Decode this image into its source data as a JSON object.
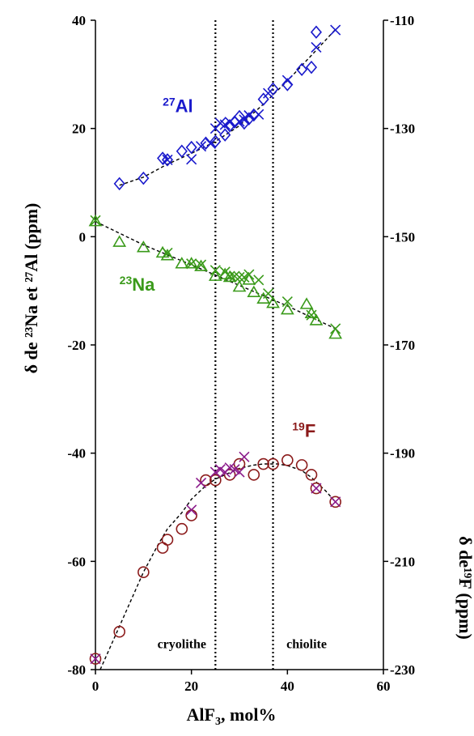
{
  "chart_data": {
    "type": "scatter",
    "xlabel": "AlF",
    "xlabel_sub": "3",
    "xlabel_suffix": ", mol%",
    "ylabel_left": "δ de ²³Na et ²⁷Al (ppm)",
    "ylabel_right": "δ de¹⁹F (ppm)",
    "xlim": [
      0,
      60
    ],
    "ylim_left": [
      -80,
      40
    ],
    "ylim_right": [
      -230,
      -110
    ],
    "xticks": [
      0,
      20,
      40,
      60
    ],
    "yticks_left": [
      40,
      20,
      0,
      -20,
      -40,
      -60,
      -80
    ],
    "yticks_right": [
      -110,
      -130,
      -150,
      -170,
      -190,
      -210,
      -230
    ],
    "grid": false,
    "vlines": [
      25,
      37
    ],
    "region_labels": [
      {
        "text": "cryolithe",
        "x": 18,
        "y": -76
      },
      {
        "text": "chiolite",
        "x": 44,
        "y": -76
      }
    ],
    "series": [
      {
        "name": "27Al",
        "label_sup": "27",
        "label_main": "Al",
        "label_x": 14,
        "label_y": 23,
        "color": "#1a1acc",
        "axis": "left",
        "marker": "diamond",
        "points": [
          [
            5,
            9.8
          ],
          [
            10,
            10.8
          ],
          [
            14,
            14.5
          ],
          [
            15,
            14.2
          ],
          [
            18,
            15.8
          ],
          [
            20,
            16.5
          ],
          [
            23,
            17.3
          ],
          [
            25,
            17.6
          ],
          [
            27,
            18.8
          ],
          [
            28,
            20.5
          ],
          [
            29,
            21.2
          ],
          [
            30,
            22.2
          ],
          [
            31,
            21.0
          ],
          [
            32,
            21.8
          ],
          [
            33,
            22.5
          ],
          [
            35,
            25.4
          ],
          [
            37,
            27.3
          ],
          [
            40,
            28.1
          ],
          [
            43,
            30.9
          ],
          [
            45,
            31.3
          ],
          [
            46,
            37.8
          ]
        ]
      },
      {
        "name": "27Al-cross",
        "color": "#1a1acc",
        "axis": "left",
        "marker": "x",
        "points": [
          [
            15,
            14.2
          ],
          [
            20,
            14.3
          ],
          [
            22,
            16.7
          ],
          [
            24,
            17.2
          ],
          [
            25,
            20.0
          ],
          [
            26,
            21.0
          ],
          [
            27,
            20.7
          ],
          [
            28,
            21.2
          ],
          [
            30,
            21.3
          ],
          [
            31,
            21.6
          ],
          [
            32,
            22.4
          ],
          [
            34,
            22.6
          ],
          [
            36,
            26.5
          ],
          [
            40,
            28.9
          ],
          [
            46,
            35.0
          ],
          [
            50,
            38.2
          ]
        ]
      },
      {
        "name": "23Na",
        "label_sup": "23",
        "label_main": "Na",
        "label_x": 5,
        "label_y": -10,
        "color": "#3a9a1a",
        "axis": "left",
        "marker": "triangle",
        "points": [
          [
            0,
            2.8
          ],
          [
            5,
            -1.0
          ],
          [
            10,
            -2.0
          ],
          [
            14,
            -3.0
          ],
          [
            15,
            -3.5
          ],
          [
            18,
            -5.0
          ],
          [
            20,
            -5.0
          ],
          [
            22,
            -5.5
          ],
          [
            25,
            -7.3
          ],
          [
            27,
            -7.0
          ],
          [
            28,
            -7.5
          ],
          [
            30,
            -9.3
          ],
          [
            32,
            -8.0
          ],
          [
            33,
            -10.3
          ],
          [
            35,
            -11.5
          ],
          [
            37,
            -12.3
          ],
          [
            40,
            -13.5
          ],
          [
            44,
            -12.5
          ],
          [
            45,
            -14.2
          ],
          [
            46,
            -15.5
          ],
          [
            50,
            -18.0
          ]
        ]
      },
      {
        "name": "23Na-cross",
        "color": "#3a9a1a",
        "axis": "left",
        "marker": "x",
        "points": [
          [
            0,
            3.0
          ],
          [
            15,
            -3.0
          ],
          [
            20,
            -5.0
          ],
          [
            22,
            -5.2
          ],
          [
            25,
            -6.2
          ],
          [
            27,
            -6.5
          ],
          [
            28,
            -7.3
          ],
          [
            29,
            -7.3
          ],
          [
            30,
            -7.5
          ],
          [
            31,
            -7.5
          ],
          [
            32,
            -7.0
          ],
          [
            34,
            -8.0
          ],
          [
            36,
            -10.5
          ],
          [
            40,
            -12.0
          ],
          [
            45,
            -14.5
          ],
          [
            50,
            -17.0
          ]
        ]
      },
      {
        "name": "19F",
        "label_sup": "19",
        "label_main": "F",
        "label_x": 41,
        "label_y": -37,
        "color": "#8b1a1a",
        "axis": "left",
        "marker": "circle",
        "points": [
          [
            0,
            -78
          ],
          [
            5,
            -73
          ],
          [
            10,
            -62
          ],
          [
            14,
            -57.5
          ],
          [
            15,
            -56
          ],
          [
            18,
            -54
          ],
          [
            20,
            -51.5
          ],
          [
            23,
            -45
          ],
          [
            25,
            -45
          ],
          [
            28,
            -44
          ],
          [
            30,
            -42
          ],
          [
            33,
            -44
          ],
          [
            35,
            -42
          ],
          [
            37,
            -42
          ],
          [
            40,
            -41.3
          ],
          [
            43,
            -42.2
          ],
          [
            45,
            -44
          ],
          [
            46,
            -46.5
          ],
          [
            50,
            -49
          ]
        ]
      },
      {
        "name": "19F-cross",
        "color": "#8b1a8b",
        "axis": "left",
        "marker": "x",
        "points": [
          [
            0,
            -78
          ],
          [
            20,
            -50.5
          ],
          [
            22,
            -45.5
          ],
          [
            25,
            -43.5
          ],
          [
            26,
            -43
          ],
          [
            27,
            -43.5
          ],
          [
            28,
            -42.7
          ],
          [
            29,
            -43
          ],
          [
            30,
            -43.5
          ],
          [
            31,
            -40.7
          ],
          [
            46,
            -46.5
          ],
          [
            50,
            -49
          ]
        ]
      }
    ],
    "trendlines": [
      {
        "series": "27Al",
        "points": [
          [
            5,
            9.5
          ],
          [
            10,
            11.0
          ],
          [
            15,
            13.4
          ],
          [
            20,
            15.4
          ],
          [
            25,
            17.6
          ],
          [
            30,
            20.5
          ],
          [
            35,
            24.5
          ],
          [
            40,
            28.8
          ],
          [
            45,
            33.5
          ],
          [
            50,
            38.3
          ]
        ]
      },
      {
        "series": "23Na",
        "points": [
          [
            0,
            2.8
          ],
          [
            10,
            -1.5
          ],
          [
            20,
            -5.2
          ],
          [
            30,
            -9.0
          ],
          [
            40,
            -12.8
          ],
          [
            50,
            -17.0
          ]
        ]
      },
      {
        "series": "19F",
        "points": [
          [
            1,
            -80
          ],
          [
            3,
            -76
          ],
          [
            5,
            -72
          ],
          [
            8,
            -66
          ],
          [
            10,
            -62
          ],
          [
            13,
            -57
          ],
          [
            15,
            -54
          ],
          [
            18,
            -51
          ],
          [
            20,
            -48.5
          ],
          [
            23,
            -46
          ],
          [
            25,
            -44.8
          ],
          [
            28,
            -43.6
          ],
          [
            30,
            -42.8
          ],
          [
            33,
            -42.2
          ],
          [
            35,
            -42.0
          ],
          [
            38,
            -42.0
          ],
          [
            40,
            -42.3
          ],
          [
            43,
            -43.2
          ],
          [
            45,
            -44.5
          ],
          [
            48,
            -47
          ],
          [
            50,
            -49
          ]
        ]
      }
    ]
  }
}
